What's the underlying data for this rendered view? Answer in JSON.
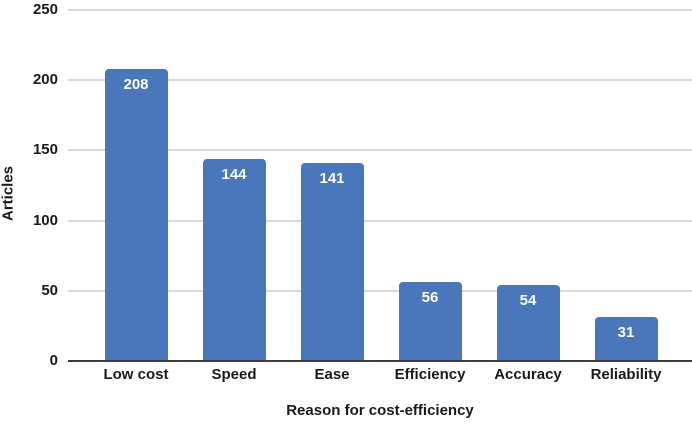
{
  "chart_data": {
    "type": "bar",
    "title": "",
    "categories": [
      "Low cost",
      "Speed",
      "Ease",
      "Efficiency",
      "Accuracy",
      "Reliability"
    ],
    "values": [
      208,
      144,
      141,
      56,
      54,
      31
    ],
    "xlabel": "Reason for cost-efficiency",
    "ylabel": "Articles",
    "ylim": [
      0,
      250
    ],
    "yticks": [
      0,
      50,
      100,
      150,
      200,
      250
    ],
    "grid": "horizontal",
    "legend": "none",
    "value_labels": "inside-top",
    "colors": {
      "bar": "#4a77bc",
      "value_label": "#ffffff",
      "gridline": "#d9d9d9",
      "zero_axis": "#3c3c3c",
      "text": "#1a1a1a",
      "background": "#ffffff"
    }
  }
}
